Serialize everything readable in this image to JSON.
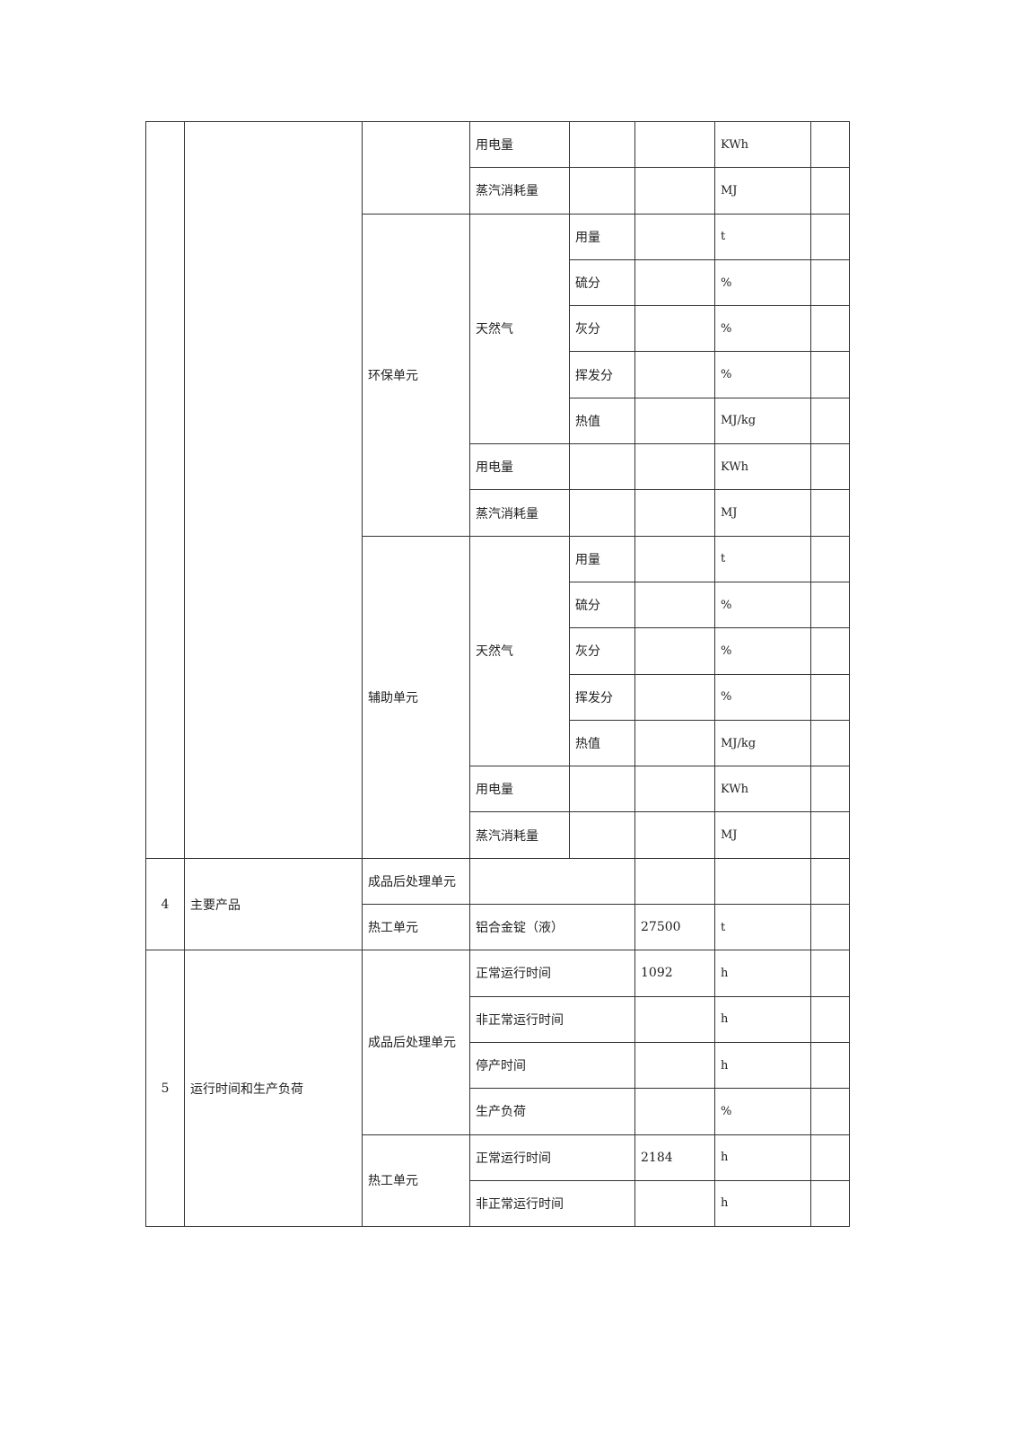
{
  "section3": {
    "top_rows": [
      {
        "item": "用电量",
        "unit": "KWh"
      },
      {
        "item": "蒸汽消耗量",
        "unit": "MJ"
      }
    ],
    "env_unit": {
      "label": "环保单元",
      "fuel": "天然气",
      "fuel_params": [
        {
          "name": "用量",
          "unit": "t"
        },
        {
          "name": "硫分",
          "unit": "%"
        },
        {
          "name": "灰分",
          "unit": "%"
        },
        {
          "name": "挥发分",
          "unit": "%"
        },
        {
          "name": "热值",
          "unit": "MJ/kg"
        }
      ],
      "electricity": {
        "item": "用电量",
        "unit": "KWh"
      },
      "steam": {
        "item": "蒸汽消耗量",
        "unit": "MJ"
      }
    },
    "aux_unit": {
      "label": "辅助单元",
      "fuel": "天然气",
      "fuel_params": [
        {
          "name": "用量",
          "unit": "t"
        },
        {
          "name": "硫分",
          "unit": "%"
        },
        {
          "name": "灰分",
          "unit": "%"
        },
        {
          "name": "挥发分",
          "unit": "%"
        },
        {
          "name": "热值",
          "unit": "MJ/kg"
        }
      ],
      "electricity": {
        "item": "用电量",
        "unit": "KWh"
      },
      "steam": {
        "item": "蒸汽消耗量",
        "unit": "MJ"
      }
    }
  },
  "item4": {
    "no": "4",
    "label": "主要产品",
    "rows": [
      {
        "unit_name": "成品后处理单元"
      },
      {
        "unit_name": "热工单元",
        "product": "铝合金锭（液）",
        "value": "27500",
        "unit": "t"
      }
    ]
  },
  "item5": {
    "no": "5",
    "label": "运行时间和生产负荷",
    "groups": [
      {
        "unit_name": "成品后处理单元",
        "rows": [
          {
            "name": "正常运行时间",
            "value": "1092",
            "unit": "h"
          },
          {
            "name": "非正常运行时间",
            "unit": "h"
          },
          {
            "name": "停产时间",
            "unit": "h"
          },
          {
            "name": "生产负荷",
            "unit": "%"
          }
        ]
      },
      {
        "unit_name": "热工单元",
        "rows": [
          {
            "name": "正常运行时间",
            "value": "2184",
            "unit": "h"
          },
          {
            "name": "非正常运行时间",
            "unit": "h"
          }
        ]
      }
    ]
  }
}
